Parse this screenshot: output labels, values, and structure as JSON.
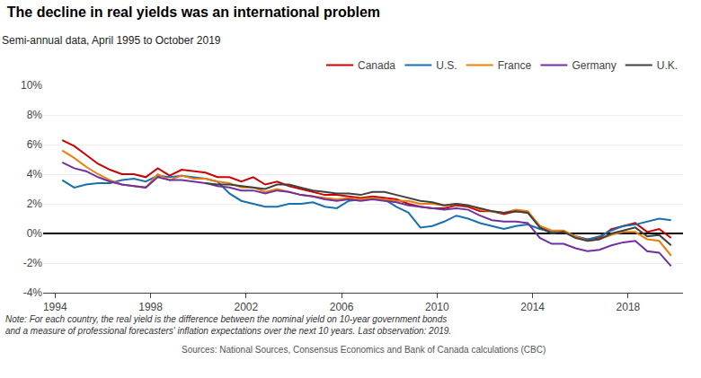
{
  "chart_data": {
    "type": "line",
    "title": "The decline in real yields was an international problem",
    "subtitle": "Semi-annual data, April 1995 to October 2019",
    "note": "Note: For each country, the real yield is the difference between the nominal yield on 10-year government bonds\nand a measure of professional forecasters' inflation expectations over the next 10 years. Last observation: 2019.",
    "source": "Sources: National Sources, Consensus Economics and Bank of Canada calculations (CBC)",
    "x": [
      1994.3,
      1994.8,
      1995.3,
      1995.8,
      1996.3,
      1996.8,
      1997.3,
      1997.8,
      1998.3,
      1998.8,
      1999.3,
      1999.8,
      2000.3,
      2000.8,
      2001.3,
      2001.8,
      2002.3,
      2002.8,
      2003.3,
      2003.8,
      2004.3,
      2004.8,
      2005.3,
      2005.8,
      2006.3,
      2006.8,
      2007.3,
      2007.8,
      2008.3,
      2008.8,
      2009.3,
      2009.8,
      2010.3,
      2010.8,
      2011.3,
      2011.8,
      2012.3,
      2012.8,
      2013.3,
      2013.8,
      2014.3,
      2014.8,
      2015.3,
      2015.8,
      2016.3,
      2016.8,
      2017.3,
      2017.8,
      2018.3,
      2018.8,
      2019.3,
      2019.8
    ],
    "series": [
      {
        "name": "Canada",
        "color": "#cc0000",
        "values": [
          6.3,
          5.9,
          5.3,
          4.7,
          4.3,
          4.0,
          4.0,
          3.8,
          4.4,
          3.9,
          4.3,
          4.2,
          4.1,
          3.8,
          3.8,
          3.5,
          3.8,
          3.3,
          3.5,
          3.2,
          3.0,
          2.8,
          2.6,
          2.6,
          2.5,
          2.4,
          2.5,
          2.4,
          2.3,
          2.0,
          1.8,
          1.7,
          1.7,
          1.9,
          1.8,
          1.5,
          1.5,
          1.3,
          1.5,
          1.4,
          0.5,
          0.1,
          0.1,
          -0.2,
          -0.4,
          -0.3,
          0.3,
          0.5,
          0.7,
          0.1,
          0.3,
          -0.3
        ]
      },
      {
        "name": "U.S.",
        "color": "#1a6faf",
        "values": [
          3.6,
          3.1,
          3.3,
          3.4,
          3.4,
          3.6,
          3.7,
          3.5,
          3.9,
          3.8,
          3.9,
          3.8,
          3.7,
          3.5,
          2.7,
          2.2,
          2.0,
          1.8,
          1.8,
          2.0,
          2.0,
          2.1,
          1.8,
          1.7,
          2.2,
          2.3,
          2.4,
          2.3,
          1.8,
          1.4,
          0.4,
          0.5,
          0.8,
          1.2,
          1.0,
          0.7,
          0.5,
          0.3,
          0.5,
          0.6,
          0.3,
          0.1,
          0.1,
          -0.2,
          -0.4,
          -0.2,
          0.2,
          0.5,
          0.6,
          0.8,
          1.0,
          0.9
        ]
      },
      {
        "name": "France",
        "color": "#e8800a",
        "values": [
          5.6,
          5.1,
          4.5,
          4.0,
          3.6,
          3.3,
          3.2,
          3.1,
          4.0,
          3.6,
          3.9,
          3.7,
          3.7,
          3.5,
          3.4,
          3.1,
          3.1,
          2.8,
          3.0,
          2.8,
          2.6,
          2.5,
          2.4,
          2.3,
          2.4,
          2.3,
          2.4,
          2.3,
          2.2,
          2.2,
          2.0,
          2.0,
          1.9,
          2.0,
          1.9,
          1.6,
          1.5,
          1.4,
          1.6,
          1.5,
          0.5,
          0.2,
          0.2,
          -0.2,
          -0.5,
          -0.4,
          -0.1,
          0.1,
          0.1,
          -0.4,
          -0.5,
          -1.5
        ]
      },
      {
        "name": "Germany",
        "color": "#7030a0",
        "values": [
          4.8,
          4.4,
          4.2,
          3.8,
          3.5,
          3.3,
          3.2,
          3.1,
          3.8,
          3.6,
          3.6,
          3.5,
          3.4,
          3.2,
          3.1,
          2.9,
          2.9,
          2.7,
          2.9,
          2.8,
          2.6,
          2.5,
          2.3,
          2.2,
          2.3,
          2.2,
          2.3,
          2.2,
          2.1,
          1.9,
          1.8,
          1.7,
          1.6,
          1.7,
          1.6,
          1.2,
          0.9,
          0.8,
          0.8,
          0.7,
          -0.3,
          -0.7,
          -0.7,
          -1.0,
          -1.2,
          -1.1,
          -0.8,
          -0.6,
          -0.5,
          -1.2,
          -1.3,
          -2.2
        ]
      },
      {
        "name": "U.K.",
        "color": "#404040",
        "values": [
          null,
          null,
          null,
          null,
          null,
          null,
          null,
          null,
          null,
          null,
          null,
          null,
          3.4,
          3.3,
          3.3,
          3.2,
          3.1,
          3.0,
          3.3,
          3.3,
          3.1,
          2.9,
          2.8,
          2.7,
          2.7,
          2.6,
          2.8,
          2.8,
          2.6,
          2.4,
          2.2,
          2.1,
          1.9,
          2.0,
          1.9,
          1.7,
          1.5,
          1.4,
          1.5,
          1.4,
          0.4,
          0.0,
          0.1,
          -0.3,
          -0.5,
          -0.4,
          0.0,
          0.2,
          0.4,
          -0.2,
          -0.1,
          -0.8
        ]
      }
    ],
    "xlim": [
      1993.5,
      2020.3
    ],
    "xticks": [
      1994,
      1998,
      2002,
      2006,
      2010,
      2014,
      2018
    ],
    "ylim": [
      -4,
      10
    ],
    "yticks": [
      {
        "value": -4,
        "label": "-4%"
      },
      {
        "value": -2,
        "label": "-2%"
      },
      {
        "value": 0,
        "label": "0%"
      },
      {
        "value": 2,
        "label": "2%"
      },
      {
        "value": 4,
        "label": "4%"
      },
      {
        "value": 6,
        "label": "6%"
      },
      {
        "value": 8,
        "label": "8%"
      },
      {
        "value": 10,
        "label": "10%"
      }
    ],
    "grid": true,
    "legend": "upper right"
  }
}
